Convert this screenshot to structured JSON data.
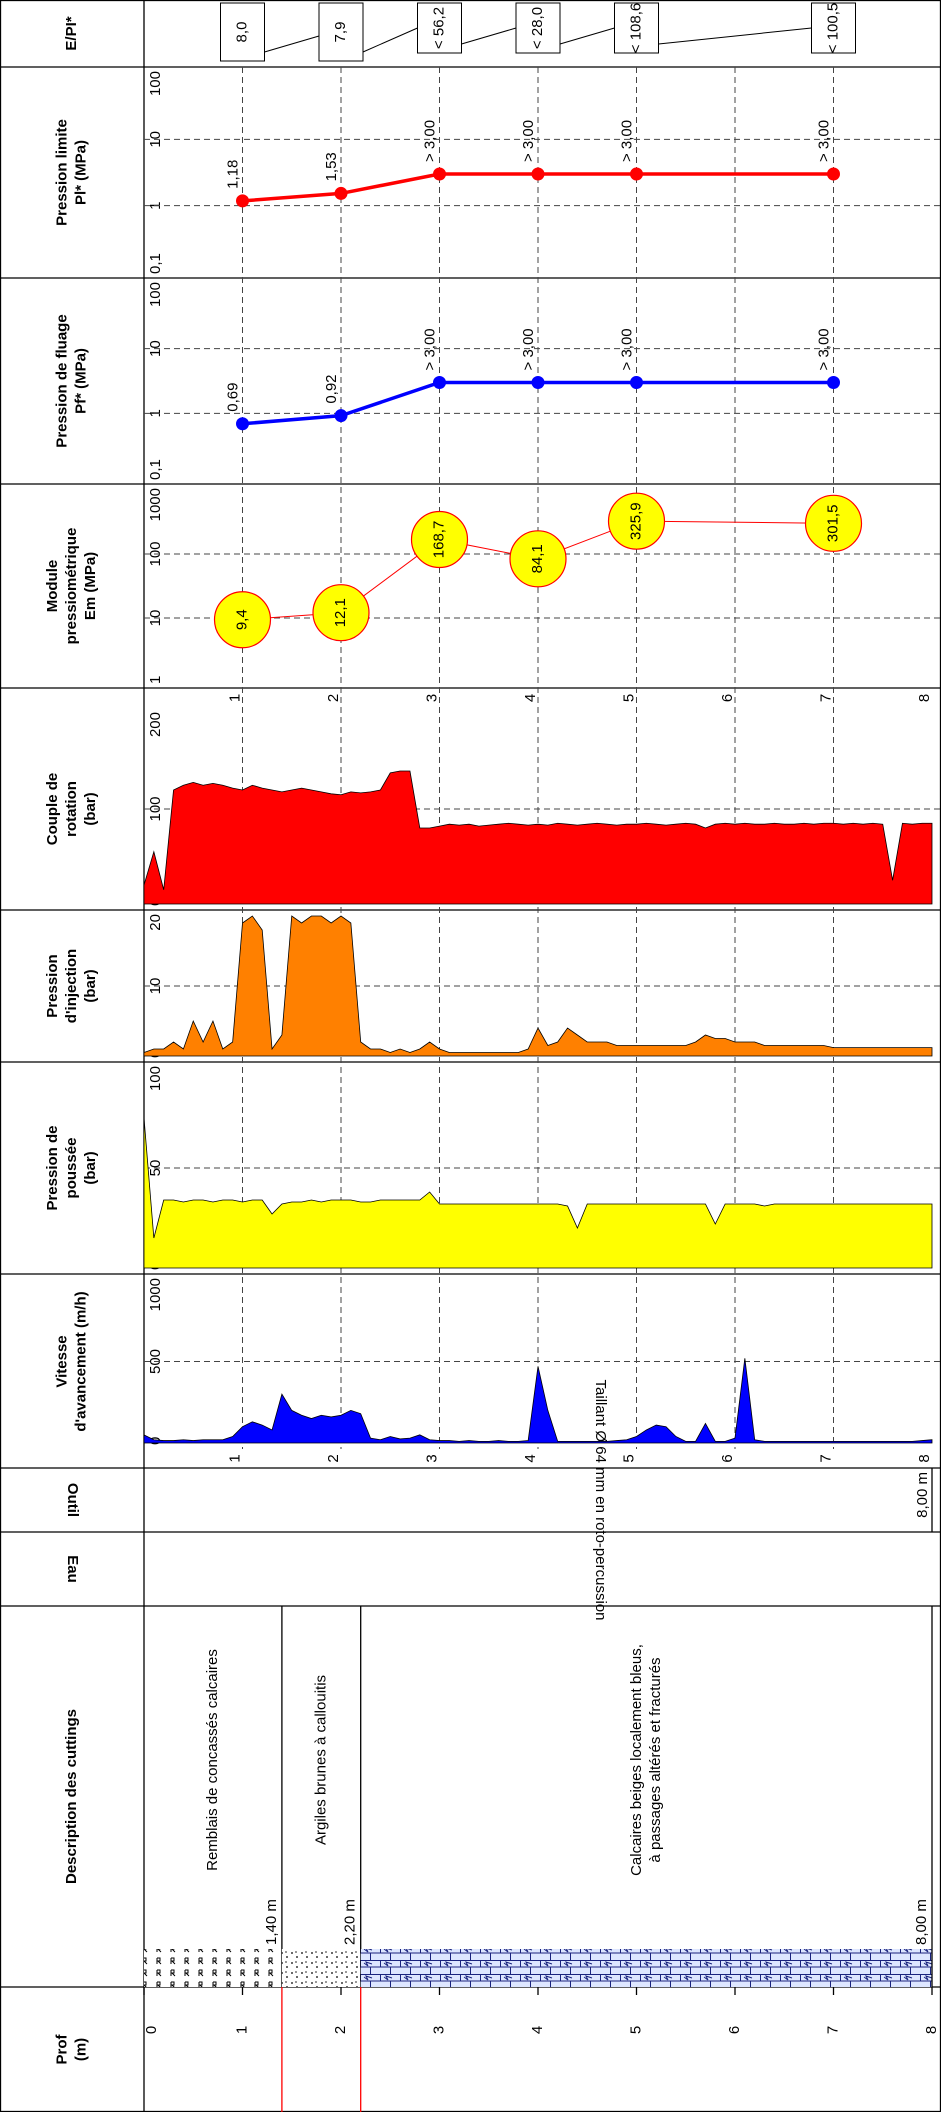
{
  "depth_axis": {
    "xlim": [
      0,
      8
    ],
    "ticks": [
      0,
      1,
      2,
      3,
      4,
      5,
      6,
      7,
      8
    ]
  },
  "prof": {
    "title": [
      "Prof",
      "(m)"
    ]
  },
  "description": {
    "title": "Description des cuttings",
    "layers": [
      {
        "text": [
          "Remblais de concassés calcaires"
        ],
        "top": 0,
        "base": 1.4,
        "base_label": "1,40 m"
      },
      {
        "text": [
          "Argiles brunes à callouitis"
        ],
        "top": 1.4,
        "base": 2.2,
        "base_label": "2,20 m"
      },
      {
        "text": [
          "Calcaires beiges localement bleus,",
          "à passages altérés et fracturés"
        ],
        "top": 2.2,
        "base": 8.0,
        "base_label": "8,00 m"
      }
    ]
  },
  "eau": {
    "title": "Eau"
  },
  "outil": {
    "title": "Outil",
    "text": "Taillant Ø 64 mm en roto-percussion",
    "end": 8.0,
    "end_label": "8,00 m"
  },
  "chart_data": [
    {
      "type": "boxes",
      "title": "E/PI*",
      "x": [
        1,
        2,
        3,
        4,
        5,
        7
      ],
      "values": [
        8.0,
        7.9,
        56.2,
        28.0,
        108.6,
        100.5
      ],
      "value_labels": [
        "8,0",
        "7,9",
        "< 56,2",
        "< 28,0",
        "< 108,6",
        "< 100,5"
      ]
    },
    {
      "type": "line",
      "title": [
        "Pression limite",
        "Pl* (MPa)"
      ],
      "x": [
        1,
        2,
        3,
        4,
        5,
        7
      ],
      "values": [
        1.18,
        1.53,
        3,
        3,
        3,
        3
      ],
      "value_labels": [
        "1,18",
        "1,53",
        "> 3,00",
        "> 3,00",
        "> 3,00",
        "> 3,00"
      ],
      "color": "#ff0000",
      "log_scale": true,
      "ylim": [
        0.1,
        100
      ],
      "yticks": [
        {
          "value": 0.1,
          "label": "0,1"
        },
        1,
        10,
        100
      ],
      "grid": true
    },
    {
      "type": "line",
      "title": [
        "Pression de fluage",
        "Pf* (MPa)"
      ],
      "x": [
        1,
        2,
        3,
        4,
        5,
        7
      ],
      "values": [
        0.69,
        0.92,
        3,
        3,
        3,
        3
      ],
      "value_labels": [
        "0,69",
        "0,92",
        "> 3,00",
        "> 3,00",
        "> 3,00",
        "> 3,00"
      ],
      "color": "#0000ff",
      "log_scale": true,
      "ylim": [
        0.1,
        100
      ],
      "yticks": [
        {
          "value": 0.1,
          "label": "0,1"
        },
        1,
        10,
        100
      ],
      "grid": true
    },
    {
      "type": "bubble",
      "title": [
        "Module",
        "pressiométrique",
        "Em (MPa)"
      ],
      "x": [
        1,
        2,
        3,
        4,
        5,
        7
      ],
      "values": [
        9.4,
        12.1,
        168.7,
        84.1,
        325.9,
        301.5
      ],
      "value_labels": [
        "9,4",
        "12,1",
        "168,7",
        "84,1",
        "325,9",
        "301,5"
      ],
      "color": "#ffff00",
      "edge_color": "#ff0000",
      "log_scale": true,
      "ylim": [
        1,
        1000
      ],
      "yticks": [
        1,
        10,
        100,
        1000
      ],
      "grid": true
    },
    {
      "type": "area",
      "grid": true,
      "x": [
        0,
        0.1,
        0.2,
        0.3,
        0.4,
        0.5,
        0.6,
        0.7,
        0.8,
        0.9,
        1,
        1.1,
        1.2,
        1.3,
        1.4,
        1.5,
        1.6,
        1.7,
        1.8,
        1.9,
        2,
        2.1,
        2.2,
        2.3,
        2.4,
        2.5,
        2.6,
        2.7,
        2.8,
        2.9,
        3,
        3.1,
        3.2,
        3.3,
        3.4,
        3.5,
        3.6,
        3.7,
        3.8,
        3.9,
        4,
        4.1,
        4.2,
        4.3,
        4.4,
        4.5,
        4.6,
        4.7,
        4.8,
        4.9,
        5,
        5.1,
        5.2,
        5.3,
        5.4,
        5.5,
        5.6,
        5.7,
        5.8,
        5.9,
        6,
        6.1,
        6.2,
        6.3,
        6.4,
        6.5,
        6.6,
        6.7,
        6.8,
        6.9,
        7,
        7.1,
        7.2,
        7.3,
        7.4,
        7.5,
        7.6,
        7.7,
        7.8,
        7.9,
        8
      ],
      "series": [
        {
          "name": [
            "Couple de",
            "rotation",
            "(bar)"
          ],
          "color": "#ff0000",
          "ylim": [
            0,
            200
          ],
          "yticks": [
            0,
            100,
            200
          ],
          "values": [
            20,
            55,
            15,
            120,
            125,
            128,
            125,
            127,
            125,
            122,
            120,
            125,
            122,
            120,
            118,
            120,
            122,
            120,
            118,
            116,
            115,
            118,
            117,
            118,
            120,
            138,
            140,
            140,
            80,
            80,
            82,
            84,
            83,
            84,
            82,
            83,
            84,
            85,
            84,
            83,
            84,
            83,
            85,
            84,
            83,
            84,
            85,
            84,
            83,
            84,
            84,
            85,
            84,
            83,
            84,
            85,
            84,
            80,
            84,
            85,
            84,
            85,
            84,
            84,
            85,
            84,
            84,
            85,
            84,
            85,
            85,
            84,
            85,
            84,
            85,
            84,
            25,
            85,
            84,
            85,
            85
          ]
        },
        {
          "name": [
            "Pression",
            "d'injection",
            "(bar)"
          ],
          "color": "#ff8000",
          "ylim": [
            0,
            20
          ],
          "yticks": [
            0,
            10,
            20
          ],
          "values": [
            0.5,
            1,
            1,
            2,
            1,
            5,
            2,
            5,
            1,
            2,
            19,
            20,
            18,
            1,
            3,
            20,
            19,
            20,
            20,
            19,
            20,
            19,
            2,
            1,
            1,
            0.5,
            1,
            0.5,
            1,
            2,
            1,
            0.5,
            0.5,
            0.5,
            0.5,
            0.5,
            0.5,
            0.5,
            0.5,
            1,
            4,
            1.5,
            2,
            4,
            3,
            2,
            2,
            2,
            1.5,
            1.5,
            1.5,
            1.5,
            1.5,
            1.5,
            1.5,
            1.5,
            2,
            3,
            2.5,
            2.5,
            2,
            2,
            2,
            1.5,
            1.5,
            1.5,
            1.5,
            1.5,
            1.5,
            1.5,
            1.2,
            1.2,
            1.2,
            1.2,
            1.2,
            1.2,
            1.2,
            1.2,
            1.2,
            1.2,
            1.2
          ]
        },
        {
          "name": [
            "Pression de",
            "poussée",
            "(bar)"
          ],
          "color": "#ffff00",
          "ylim": [
            0,
            100
          ],
          "yticks": [
            0,
            50,
            100
          ],
          "values": [
            75,
            15,
            34,
            34,
            33,
            34,
            34,
            33,
            34,
            34,
            33,
            34,
            34,
            27,
            32,
            33,
            33,
            34,
            33,
            34,
            34,
            34,
            33,
            33,
            34,
            34,
            34,
            34,
            34,
            38,
            32,
            32,
            32,
            32,
            32,
            32,
            32,
            32,
            32,
            32,
            32,
            32,
            32,
            31,
            20,
            32,
            32,
            32,
            32,
            32,
            32,
            32,
            32,
            32,
            32,
            32,
            32,
            32,
            22,
            32,
            32,
            32,
            32,
            31,
            32,
            32,
            32,
            32,
            32,
            32,
            32,
            32,
            32,
            32,
            32,
            32,
            32,
            32,
            32,
            32,
            32
          ]
        },
        {
          "name": [
            "Vitesse",
            "d'avancement (m/h)"
          ],
          "color": "#0000ff",
          "ylim": [
            0,
            1000
          ],
          "yticks": [
            0,
            500,
            1000
          ],
          "values": [
            50,
            20,
            15,
            15,
            20,
            15,
            20,
            20,
            20,
            40,
            100,
            130,
            110,
            80,
            300,
            200,
            170,
            150,
            170,
            160,
            170,
            200,
            180,
            30,
            20,
            40,
            25,
            30,
            50,
            20,
            15,
            15,
            10,
            15,
            10,
            10,
            15,
            10,
            10,
            15,
            470,
            200,
            10,
            10,
            10,
            10,
            10,
            10,
            15,
            20,
            40,
            80,
            110,
            100,
            40,
            10,
            10,
            120,
            10,
            10,
            30,
            520,
            20,
            10,
            10,
            10,
            10,
            10,
            10,
            10,
            10,
            10,
            10,
            10,
            10,
            10,
            10,
            10,
            10,
            15,
            20
          ]
        }
      ]
    }
  ]
}
